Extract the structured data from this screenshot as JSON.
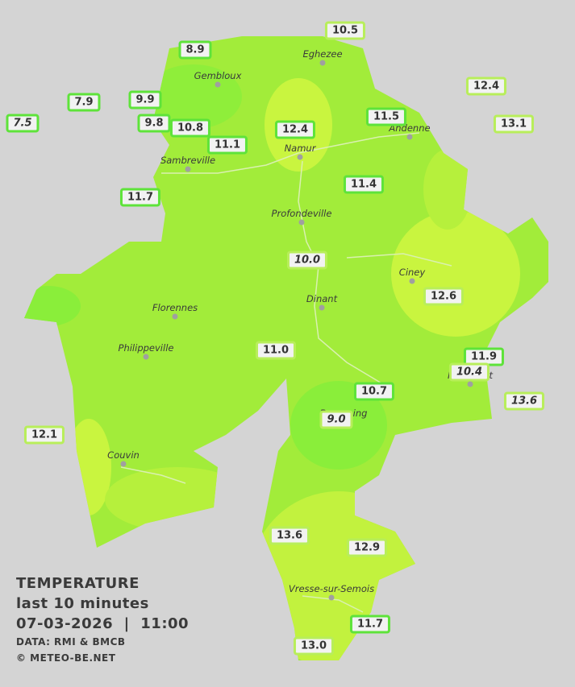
{
  "legend": {
    "title": "TEMPERATURE",
    "period": "last 10 minutes",
    "datetime": "07-03-2026  |  11:00",
    "source": "DATA: RMI & BMCB",
    "copyright": "© METEO-BE.NET"
  },
  "cities": [
    "Eghezee",
    "Gembloux",
    "Andenne",
    "Namur",
    "Sambreville",
    "Profondeville",
    "Ciney",
    "Dinant",
    "Florennes",
    "Philippeville",
    "Rochefort",
    "Beauraing",
    "Couvin",
    "Vresse-sur-Semois"
  ],
  "stations": [
    {
      "label": "10.5",
      "style": "normal"
    },
    {
      "label": "8.9",
      "style": "normal"
    },
    {
      "label": "12.4",
      "style": "normal"
    },
    {
      "label": "7.9",
      "style": "normal"
    },
    {
      "label": "9.9",
      "style": "normal"
    },
    {
      "label": "11.5",
      "style": "normal"
    },
    {
      "label": "7.5",
      "style": "italic"
    },
    {
      "label": "9.8",
      "style": "normal"
    },
    {
      "label": "10.8",
      "style": "normal"
    },
    {
      "label": "12.4",
      "style": "normal"
    },
    {
      "label": "13.1",
      "style": "normal"
    },
    {
      "label": "11.1",
      "style": "normal"
    },
    {
      "label": "11.4",
      "style": "normal"
    },
    {
      "label": "11.7",
      "style": "normal"
    },
    {
      "label": "10.0",
      "style": "italic"
    },
    {
      "label": "12.6",
      "style": "normal"
    },
    {
      "label": "11.0",
      "style": "normal"
    },
    {
      "label": "11.9",
      "style": "normal"
    },
    {
      "label": "10.4",
      "style": "italic"
    },
    {
      "label": "10.7",
      "style": "normal"
    },
    {
      "label": "13.6",
      "style": "italic"
    },
    {
      "label": "9.0",
      "style": "italic"
    },
    {
      "label": "12.1",
      "style": "normal"
    },
    {
      "label": "13.6",
      "style": "normal"
    },
    {
      "label": "12.9",
      "style": "normal"
    },
    {
      "label": "11.7",
      "style": "normal"
    },
    {
      "label": "13.0",
      "style": "normal"
    }
  ]
}
